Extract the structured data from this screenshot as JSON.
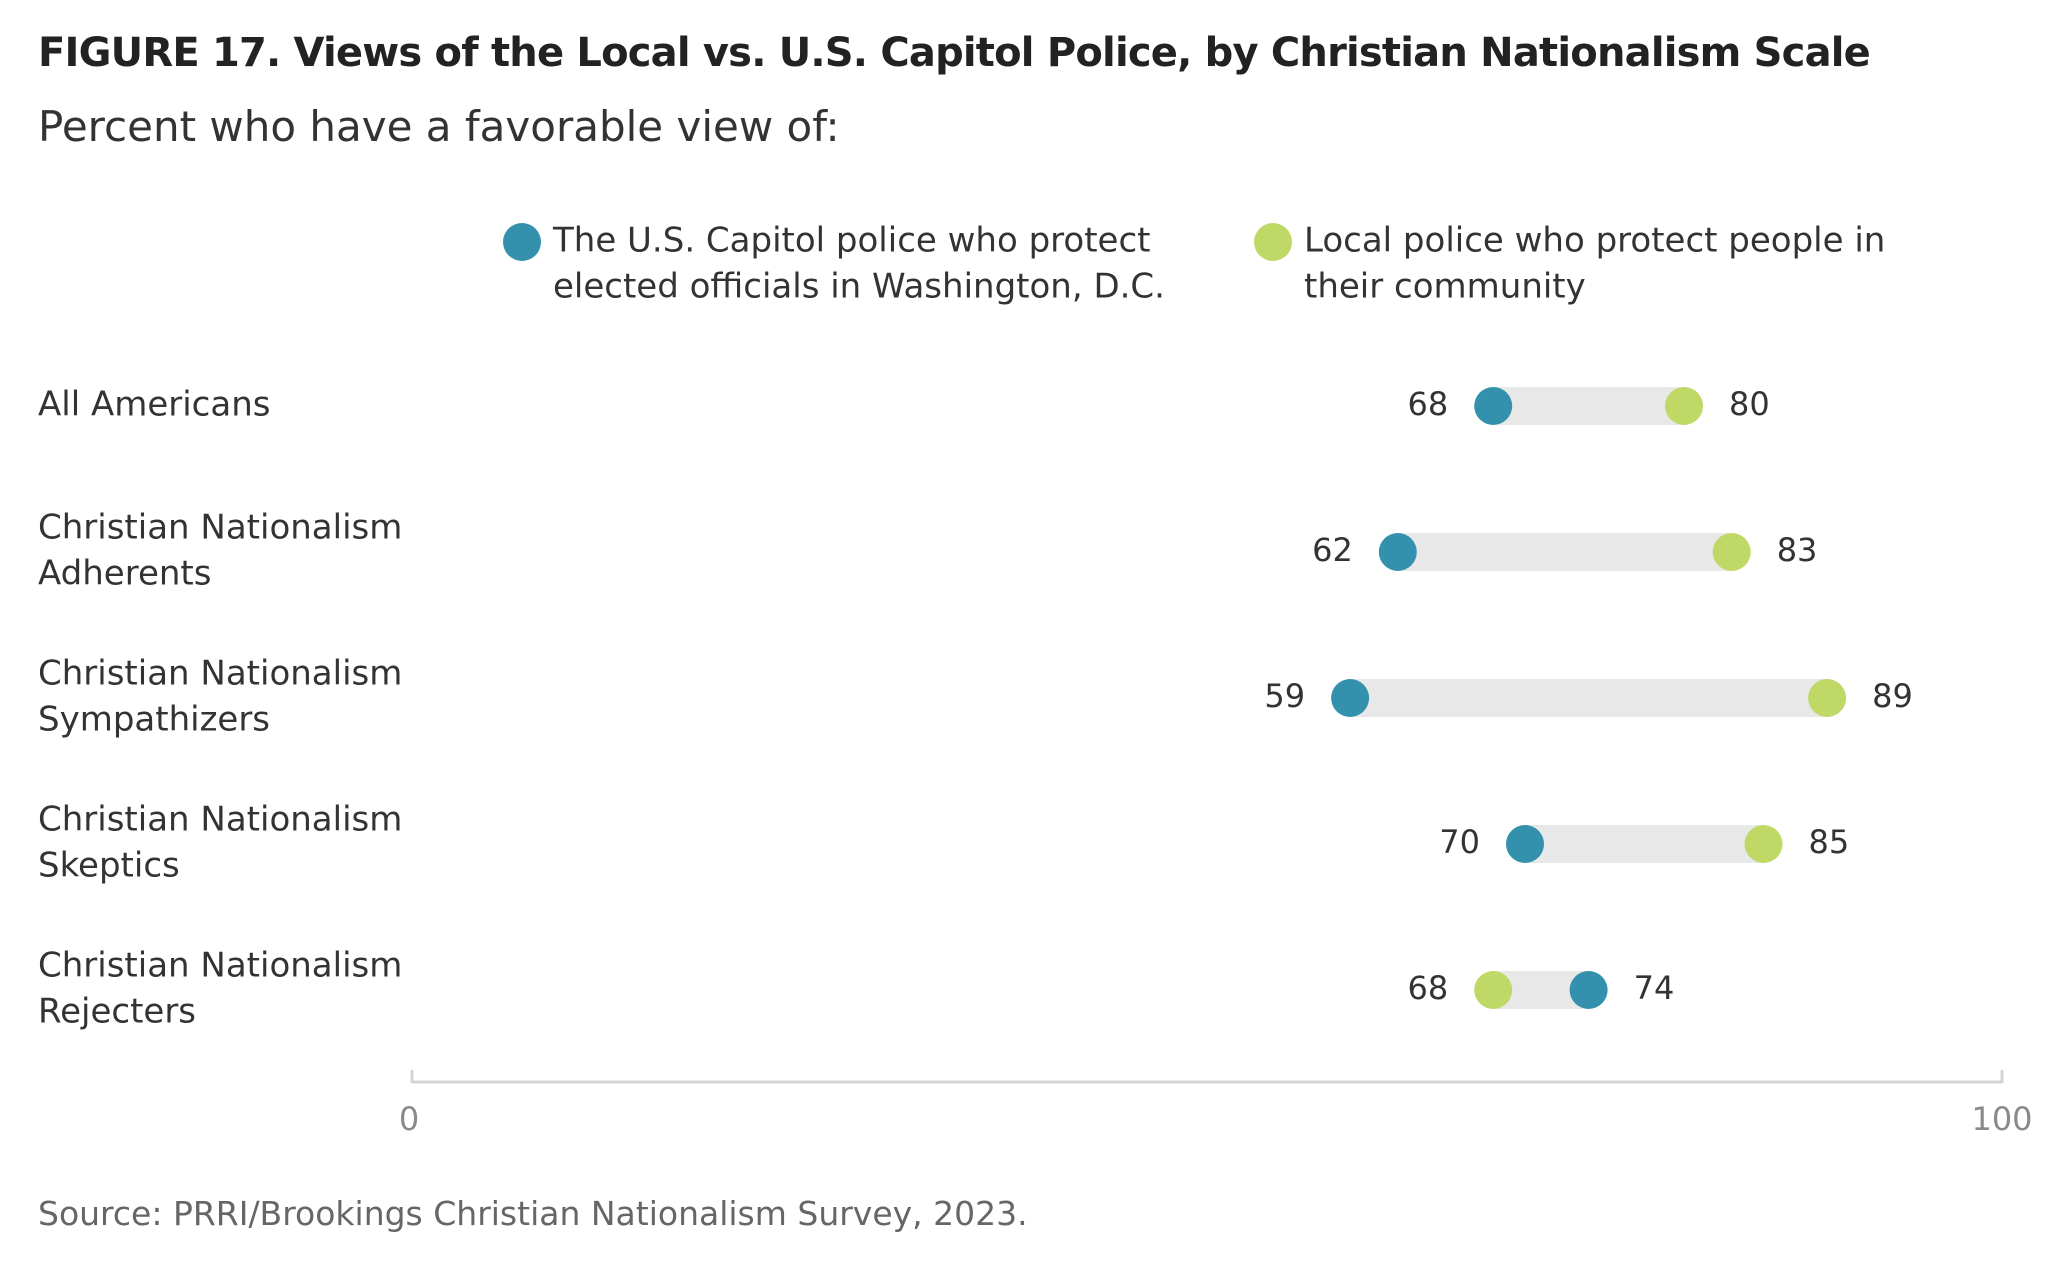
{
  "header": {
    "title": "FIGURE 17. Views of the Local vs. U.S. Capitol Police, by Christian Nationalism Scale",
    "subtitle": "Percent who have a favorable view of:"
  },
  "footer": {
    "source": "Source: PRRI/Brookings Christian Nationalism Survey, 2023."
  },
  "colors": {
    "capitol": "#3391ad",
    "local": "#bfd866",
    "bar": "#e8e8e8",
    "axis": "#d4d4d4"
  },
  "chart_data": {
    "type": "dumbbell",
    "title": "FIGURE 17. Views of the Local vs. U.S. Capitol Police, by Christian Nationalism Scale",
    "subtitle": "Percent who have a favorable view of:",
    "xlim": [
      0,
      100
    ],
    "x_ticks": [
      "0",
      "100"
    ],
    "legend_position": "top",
    "grid": false,
    "categories": [
      [
        "All Americans"
      ],
      [
        "Christian Nationalism",
        "Adherents"
      ],
      [
        "Christian Nationalism",
        "Sympathizers"
      ],
      [
        "Christian Nationalism",
        "Skeptics"
      ],
      [
        "Christian Nationalism",
        "Rejecters"
      ]
    ],
    "series": [
      {
        "name": "The U.S. Capitol police who protect elected officials in Washington, D.C.",
        "legend_lines": [
          "The U.S. Capitol police who protect",
          "elected officials in Washington, D.C."
        ],
        "color": "#3391ad",
        "values": [
          68,
          62,
          59,
          70,
          74
        ]
      },
      {
        "name": "Local police who protect people in their community",
        "legend_lines": [
          "Local police who protect people in",
          "their community"
        ],
        "color": "#bfd866",
        "values": [
          80,
          83,
          89,
          85,
          68
        ]
      }
    ]
  }
}
